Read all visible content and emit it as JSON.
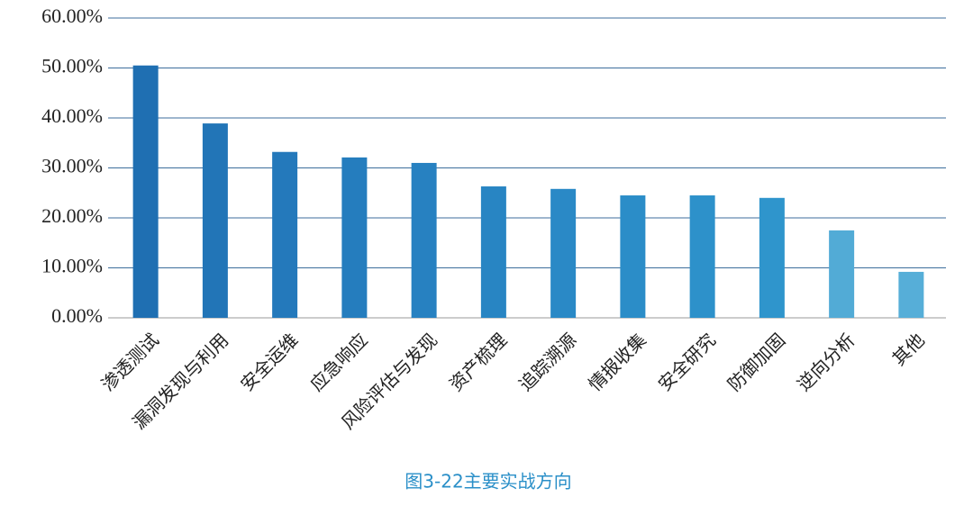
{
  "chart_data": {
    "type": "bar",
    "title": "图3-22主要实战方向",
    "categories": [
      "渗透测试",
      "漏洞发现与利用",
      "安全运维",
      "应急响应",
      "风险评估与发现",
      "资产梳理",
      "追踪溯源",
      "情报收集",
      "安全研究",
      "防御加固",
      "逆向分析",
      "其他"
    ],
    "values": [
      50.5,
      38.9,
      33.2,
      32.1,
      31.0,
      26.3,
      25.8,
      24.5,
      24.5,
      24.0,
      17.5,
      9.2
    ],
    "colors": [
      "#1f6fb2",
      "#2275b7",
      "#2479bb",
      "#257dbe",
      "#2781c1",
      "#2885c3",
      "#2a89c6",
      "#2b8dc8",
      "#2d91ca",
      "#2f95cc",
      "#52abd6",
      "#56aed8"
    ],
    "ylim": [
      0,
      60
    ],
    "yticks": [
      {
        "value": 0,
        "label": "0.00%"
      },
      {
        "value": 10,
        "label": "10.00%"
      },
      {
        "value": 20,
        "label": "20.00%"
      },
      {
        "value": 30,
        "label": "30.00%"
      },
      {
        "value": 40,
        "label": "40.00%"
      },
      {
        "value": 50,
        "label": "50.00%"
      },
      {
        "value": 60,
        "label": "60.00%"
      }
    ],
    "grid": true
  }
}
